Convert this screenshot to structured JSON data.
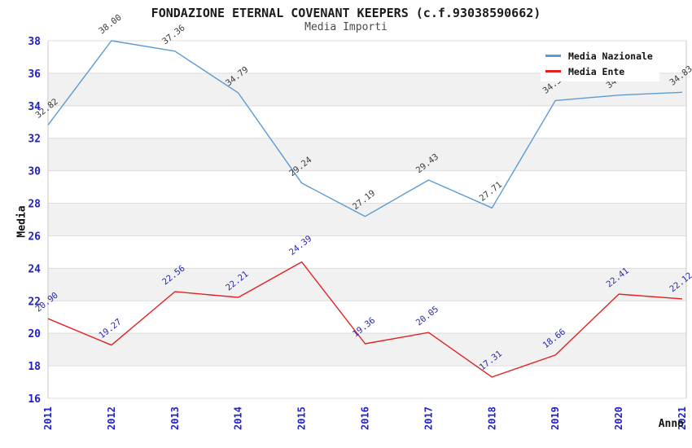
{
  "header": {
    "title": "FONDAZIONE ETERNAL COVENANT KEEPERS (c.f.93038590662)",
    "subtitle": "Media Importi"
  },
  "legend": {
    "items": [
      {
        "label": "Media Nazionale",
        "color": "#5b9bd5"
      },
      {
        "label": "Media Ente",
        "color": "#e02222"
      }
    ]
  },
  "chart_data": {
    "type": "line",
    "title": "FONDAZIONE ETERNAL COVENANT KEEPERS (c.f.93038590662)",
    "subtitle": "Media Importi",
    "xlabel": "Anno",
    "ylabel": "Media",
    "x": [
      "2011",
      "2012",
      "2013",
      "2014",
      "2015",
      "2016",
      "2017",
      "2018",
      "2019",
      "2020",
      "2021"
    ],
    "ylim": [
      16,
      38
    ],
    "ytick_step": 2,
    "grid": true,
    "banded_background": true,
    "legend_position": "top-right",
    "series": [
      {
        "name": "Media Nazionale",
        "color": "#5b9bd5",
        "label_color": "#3b3b3b",
        "values": [
          32.82,
          38.0,
          37.36,
          34.79,
          29.24,
          27.19,
          29.43,
          27.71,
          34.32,
          34.65,
          34.83
        ],
        "point_labels": [
          "32.82",
          "38.00",
          "37.36",
          "34.79",
          "29.24",
          "27.19",
          "29.43",
          "27.71",
          "34.32",
          "34.65",
          "34.83"
        ]
      },
      {
        "name": "Media Ente",
        "color": "#e02222",
        "label_color": "#2828aa",
        "values": [
          20.9,
          19.27,
          22.56,
          22.21,
          24.39,
          19.36,
          20.05,
          17.31,
          18.66,
          22.41,
          22.12
        ],
        "point_labels": [
          "20.90",
          "19.27",
          "22.56",
          "22.21",
          "24.39",
          "19.36",
          "20.05",
          "17.31",
          "18.66",
          "22.41",
          "22.12"
        ]
      }
    ],
    "colors": {
      "band": "#f1f1f1",
      "gridline": "#dcdcdc",
      "spine": "#c9c9c9",
      "tick_label": "#2121cc"
    }
  }
}
